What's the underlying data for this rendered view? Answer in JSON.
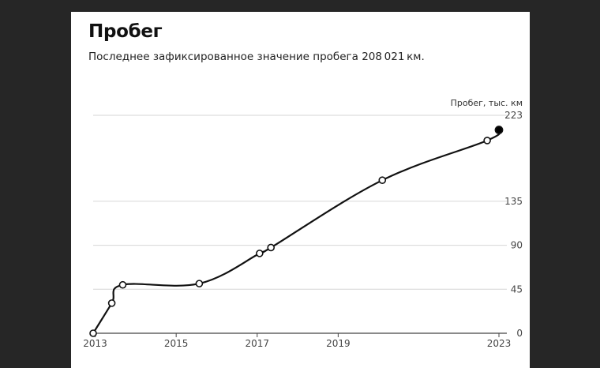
{
  "title": "Пробег",
  "subtitle": "Последнее зафиксированное значение пробега 208 021 км.",
  "chart_data": {
    "type": "line",
    "title": "Пробег",
    "ylabel": "Пробег, тыс. км",
    "xlabel": "",
    "xlim": [
      2012.95,
      2022.97
    ],
    "ylim": [
      0,
      223
    ],
    "x_ticks": [
      2013,
      2015,
      2017,
      2019,
      2023
    ],
    "y_ticks": [
      0,
      45,
      90,
      135,
      223
    ],
    "x_tick_labels": [
      "2013",
      "2015",
      "2017",
      "2019",
      "2023"
    ],
    "y_tick_labels": [
      "0",
      "45",
      "90",
      "135",
      "223"
    ],
    "grid": "horizontal",
    "series": [
      {
        "x": [
          2012.95,
          2013.41,
          2013.68,
          2015.57,
          2017.06,
          2017.34,
          2020.09,
          2022.68,
          2022.97
        ],
        "y": [
          0,
          30.8,
          49.5,
          50.8,
          81.7,
          87.7,
          156.6,
          197.2,
          208.021
        ],
        "final_marker": "filled"
      }
    ]
  }
}
